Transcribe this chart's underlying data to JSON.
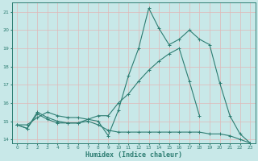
{
  "xlabel": "Humidex (Indice chaleur)",
  "x": [
    0,
    1,
    2,
    3,
    4,
    5,
    6,
    7,
    8,
    9,
    10,
    11,
    12,
    13,
    14,
    15,
    16,
    17,
    18,
    19,
    20,
    21,
    22,
    23
  ],
  "line1": [
    14.8,
    14.6,
    15.5,
    15.2,
    15.0,
    14.9,
    14.9,
    15.1,
    15.0,
    14.2,
    15.6,
    17.5,
    19.0,
    21.2,
    20.1,
    19.2,
    19.5,
    20.0,
    19.5,
    19.2,
    17.1,
    15.3,
    14.3,
    13.8
  ],
  "line2": [
    14.8,
    14.8,
    15.2,
    15.5,
    15.3,
    15.2,
    15.2,
    15.1,
    15.3,
    15.3,
    16.0,
    16.5,
    17.2,
    17.8,
    18.3,
    18.7,
    19.0,
    17.2,
    15.3,
    null,
    null,
    null,
    null,
    null
  ],
  "line3": [
    14.8,
    14.6,
    15.4,
    15.1,
    14.9,
    14.9,
    14.9,
    15.0,
    14.8,
    14.5,
    14.4,
    14.4,
    14.4,
    14.4,
    14.4,
    14.4,
    14.4,
    14.4,
    14.4,
    14.3,
    14.3,
    14.2,
    14.0,
    13.8
  ],
  "line_color": "#2d7d72",
  "bg_color": "#c8e8e8",
  "grid_color": "#b8d8d8",
  "ylim": [
    13.8,
    21.5
  ],
  "xlim": [
    -0.5,
    23.5
  ],
  "yticks": [
    14,
    15,
    16,
    17,
    18,
    19,
    20,
    21
  ]
}
